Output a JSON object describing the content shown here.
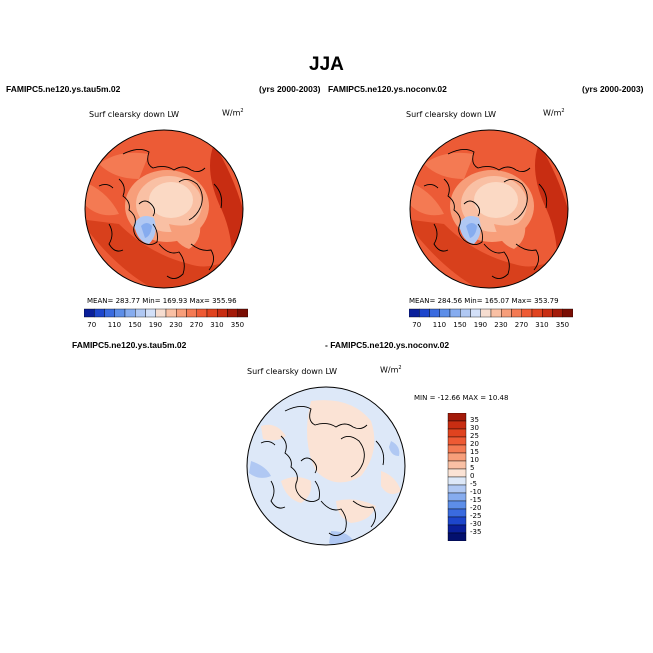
{
  "page": {
    "title": "JJA"
  },
  "panels": [
    {
      "case_label": "FAMIPC5.ne120.ys.tau5m.02",
      "years": "(yrs 2000-2003)",
      "variable": "Surf clearsky down LW",
      "units_base": "W/m",
      "units_exp": "2",
      "stats": "MEAN= 283.77   Min= 169.93   Max= 355.96"
    },
    {
      "case_label": "FAMIPC5.ne120.ys.noconv.02",
      "years": "(yrs 2000-2003)",
      "variable": "Surf clearsky down LW",
      "units_base": "W/m",
      "units_exp": "2",
      "stats": "MEAN= 284.56   Min= 165.07   Max= 353.79"
    }
  ],
  "difference": {
    "left_label": "FAMIPC5.ne120.ys.tau5m.02",
    "right_label": "- FAMIPC5.ne120.ys.noconv.02",
    "variable": "Surf clearsky down LW",
    "units_base": "W/m",
    "units_exp": "2",
    "minmax": "MIN = -12.66  MAX =  10.48"
  },
  "colorbar_top": {
    "ticks": [
      "70",
      "110",
      "150",
      "190",
      "230",
      "270",
      "310",
      "350"
    ],
    "colors": [
      "#0a1f9a",
      "#1d46cc",
      "#3a6bdf",
      "#5d8ee8",
      "#86acef",
      "#b0c8f3",
      "#d3e0f8",
      "#f6ddd0",
      "#f9c0a4",
      "#f79e7a",
      "#f47a53",
      "#ee5a34",
      "#e0431f",
      "#c82d12",
      "#a31a09",
      "#7a0e04"
    ]
  },
  "colorbar_diff": {
    "labels": [
      "35",
      "30",
      "25",
      "20",
      "15",
      "10",
      "5",
      "0",
      "-5",
      "-10",
      "-15",
      "-20",
      "-25",
      "-30",
      "-35"
    ],
    "colors": [
      "#a31a09",
      "#c82d12",
      "#e0431f",
      "#ee5a34",
      "#f47a53",
      "#f79e7a",
      "#f9c0a4",
      "#fbe3d5",
      "#dde8f8",
      "#b0c8f3",
      "#86acef",
      "#5d8ee8",
      "#3a6bdf",
      "#1d46cc",
      "#0a1f9a",
      "#03106e"
    ]
  }
}
